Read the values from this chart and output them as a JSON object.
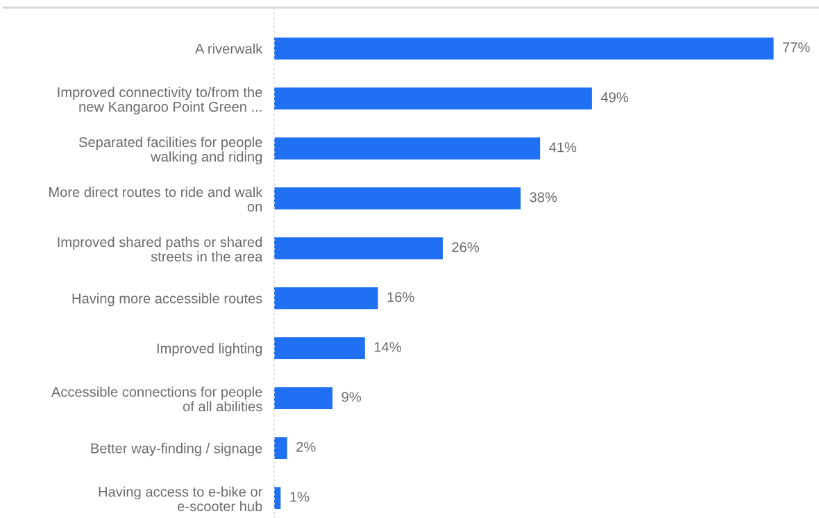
{
  "chart_data": {
    "type": "bar",
    "orientation": "horizontal",
    "categories": [
      "A riverwalk",
      "Improved connectivity to/from the\nnew Kangaroo Point Green ...",
      "Separated facilities for people\nwalking and riding",
      "More direct routes to ride and walk\non",
      "Improved shared paths or shared\nstreets in the area",
      "Having more accessible routes",
      "Improved lighting",
      "Accessible connections for people\nof all abilities",
      "Better way-finding / signage",
      "Having access to e-bike or\ne-scooter hub"
    ],
    "values": [
      77,
      49,
      41,
      38,
      26,
      16,
      14,
      9,
      2,
      1
    ],
    "value_labels": [
      "77%",
      "49%",
      "41%",
      "38%",
      "26%",
      "16%",
      "14%",
      "9%",
      "2%",
      "1%"
    ],
    "color": "#1f70f2",
    "xlim": [
      0,
      84
    ],
    "tick_labels": "y"
  }
}
